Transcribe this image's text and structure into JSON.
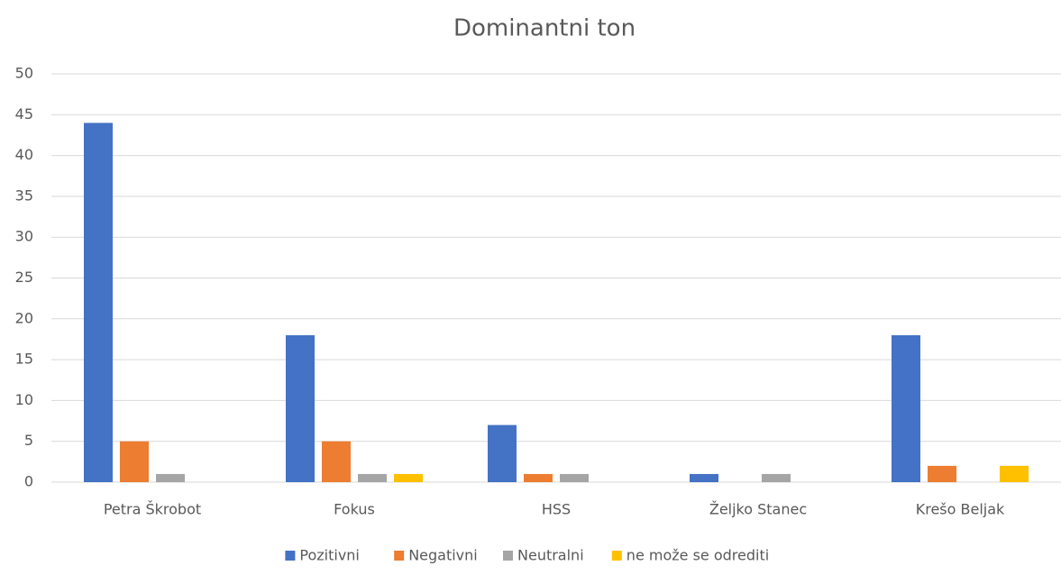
{
  "chart_data": {
    "type": "bar",
    "title": "Dominantni ton",
    "categories": [
      "Petra Škrobot",
      "Fokus",
      "HSS",
      "Željko Stanec",
      "Krešo Beljak"
    ],
    "series": [
      {
        "name": "Pozitivni",
        "color": "#4472c4",
        "values": [
          44,
          18,
          7,
          1,
          18
        ]
      },
      {
        "name": "Negativni",
        "color": "#ed7d31",
        "values": [
          5,
          5,
          1,
          0,
          2
        ]
      },
      {
        "name": "Neutralni",
        "color": "#a5a5a5",
        "values": [
          1,
          1,
          1,
          1,
          0
        ]
      },
      {
        "name": "ne može se odrediti",
        "color": "#ffc000",
        "values": [
          0,
          1,
          0,
          0,
          2
        ]
      }
    ],
    "ylim": [
      0,
      50
    ],
    "yticks": [
      0,
      5,
      10,
      15,
      20,
      25,
      30,
      35,
      40,
      45,
      50
    ],
    "grid": true,
    "legend": "bottom"
  }
}
